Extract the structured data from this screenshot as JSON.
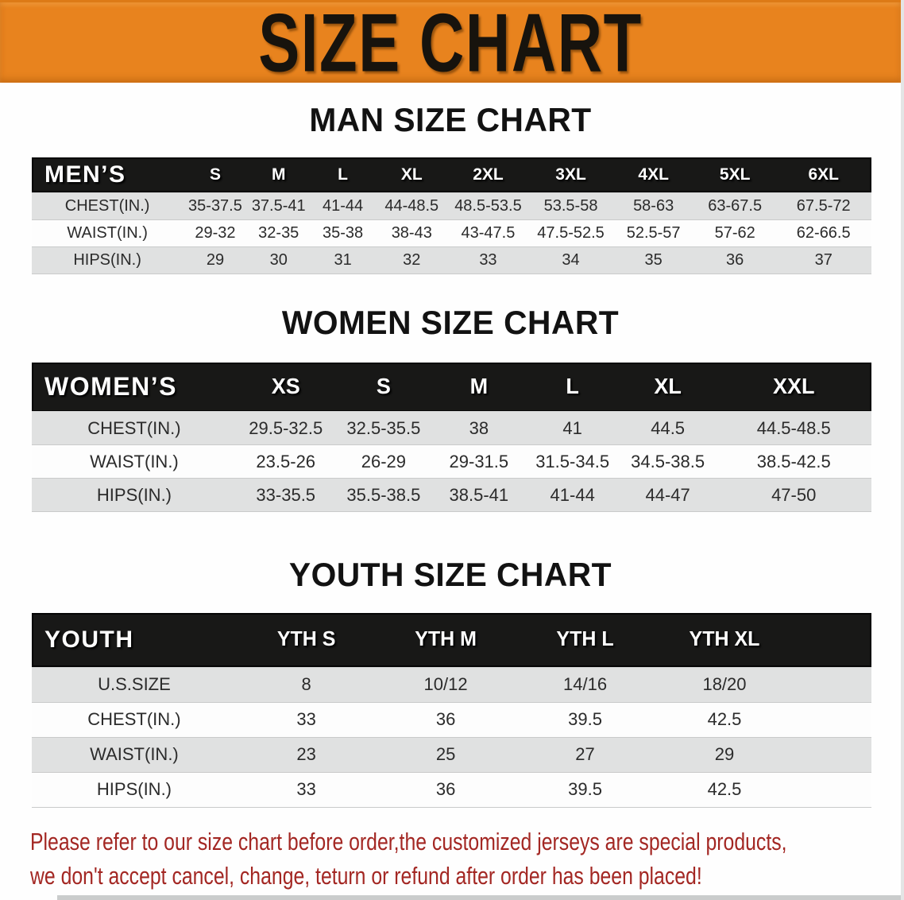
{
  "banner": {
    "title": "SIZE CHART",
    "bg_color": "#E8831E",
    "text_color": "#17130D"
  },
  "sections": [
    {
      "title": "MAN SIZE CHART",
      "header_label": "MEN’S",
      "sizes": [
        "S",
        "M",
        "L",
        "XL",
        "2XL",
        "3XL",
        "4XL",
        "5XL",
        "6XL"
      ],
      "rows": [
        {
          "label": "CHEST(IN.)",
          "values": [
            "35-37.5",
            "37.5-41",
            "41-44",
            "44-48.5",
            "48.5-53.5",
            "53.5-58",
            "58-63",
            "63-67.5",
            "67.5-72"
          ]
        },
        {
          "label": "WAIST(IN.)",
          "values": [
            "29-32",
            "32-35",
            "35-38",
            "38-43",
            "43-47.5",
            "47.5-52.5",
            "52.5-57",
            "57-62",
            "62-66.5"
          ]
        },
        {
          "label": "HIPS(IN.)",
          "values": [
            "29",
            "30",
            "31",
            "32",
            "33",
            "34",
            "35",
            "36",
            "37"
          ]
        }
      ]
    },
    {
      "title": "WOMEN SIZE CHART",
      "header_label": "WOMEN’S",
      "sizes": [
        "XS",
        "S",
        "M",
        "L",
        "XL",
        "XXL"
      ],
      "rows": [
        {
          "label": "CHEST(IN.)",
          "values": [
            "29.5-32.5",
            "32.5-35.5",
            "38",
            "41",
            "44.5",
            "44.5-48.5"
          ]
        },
        {
          "label": "WAIST(IN.)",
          "values": [
            "23.5-26",
            "26-29",
            "29-31.5",
            "31.5-34.5",
            "34.5-38.5",
            "38.5-42.5"
          ]
        },
        {
          "label": "HIPS(IN.)",
          "values": [
            "33-35.5",
            "35.5-38.5",
            "38.5-41",
            "41-44",
            "44-47",
            "47-50"
          ]
        }
      ]
    },
    {
      "title": "YOUTH SIZE CHART",
      "header_label": "YOUTH",
      "sizes": [
        "YTH S",
        "YTH M",
        "YTH L",
        "YTH XL"
      ],
      "rows": [
        {
          "label": "U.S.SIZE",
          "values": [
            "8",
            "10/12",
            "14/16",
            "18/20"
          ]
        },
        {
          "label": "CHEST(IN.)",
          "values": [
            "33",
            "36",
            "39.5",
            "42.5"
          ]
        },
        {
          "label": "WAIST(IN.)",
          "values": [
            "23",
            "25",
            "27",
            "29"
          ]
        },
        {
          "label": "HIPS(IN.)",
          "values": [
            "33",
            "36",
            "39.5",
            "42.5"
          ]
        }
      ]
    }
  ],
  "footer": {
    "line1": "Please refer to our size chart before order,the customized jerseys are special products,",
    "line2": "we don't accept cancel, change, teturn or refund after order has been placed!",
    "text_color": "#A32723"
  },
  "colors": {
    "banner_orange": "#E8831E",
    "table_header_black": "#181817",
    "row_stripe_gray": "#E0E1E1",
    "row_white": "#FDFDFD",
    "notice_red": "#A32723"
  }
}
